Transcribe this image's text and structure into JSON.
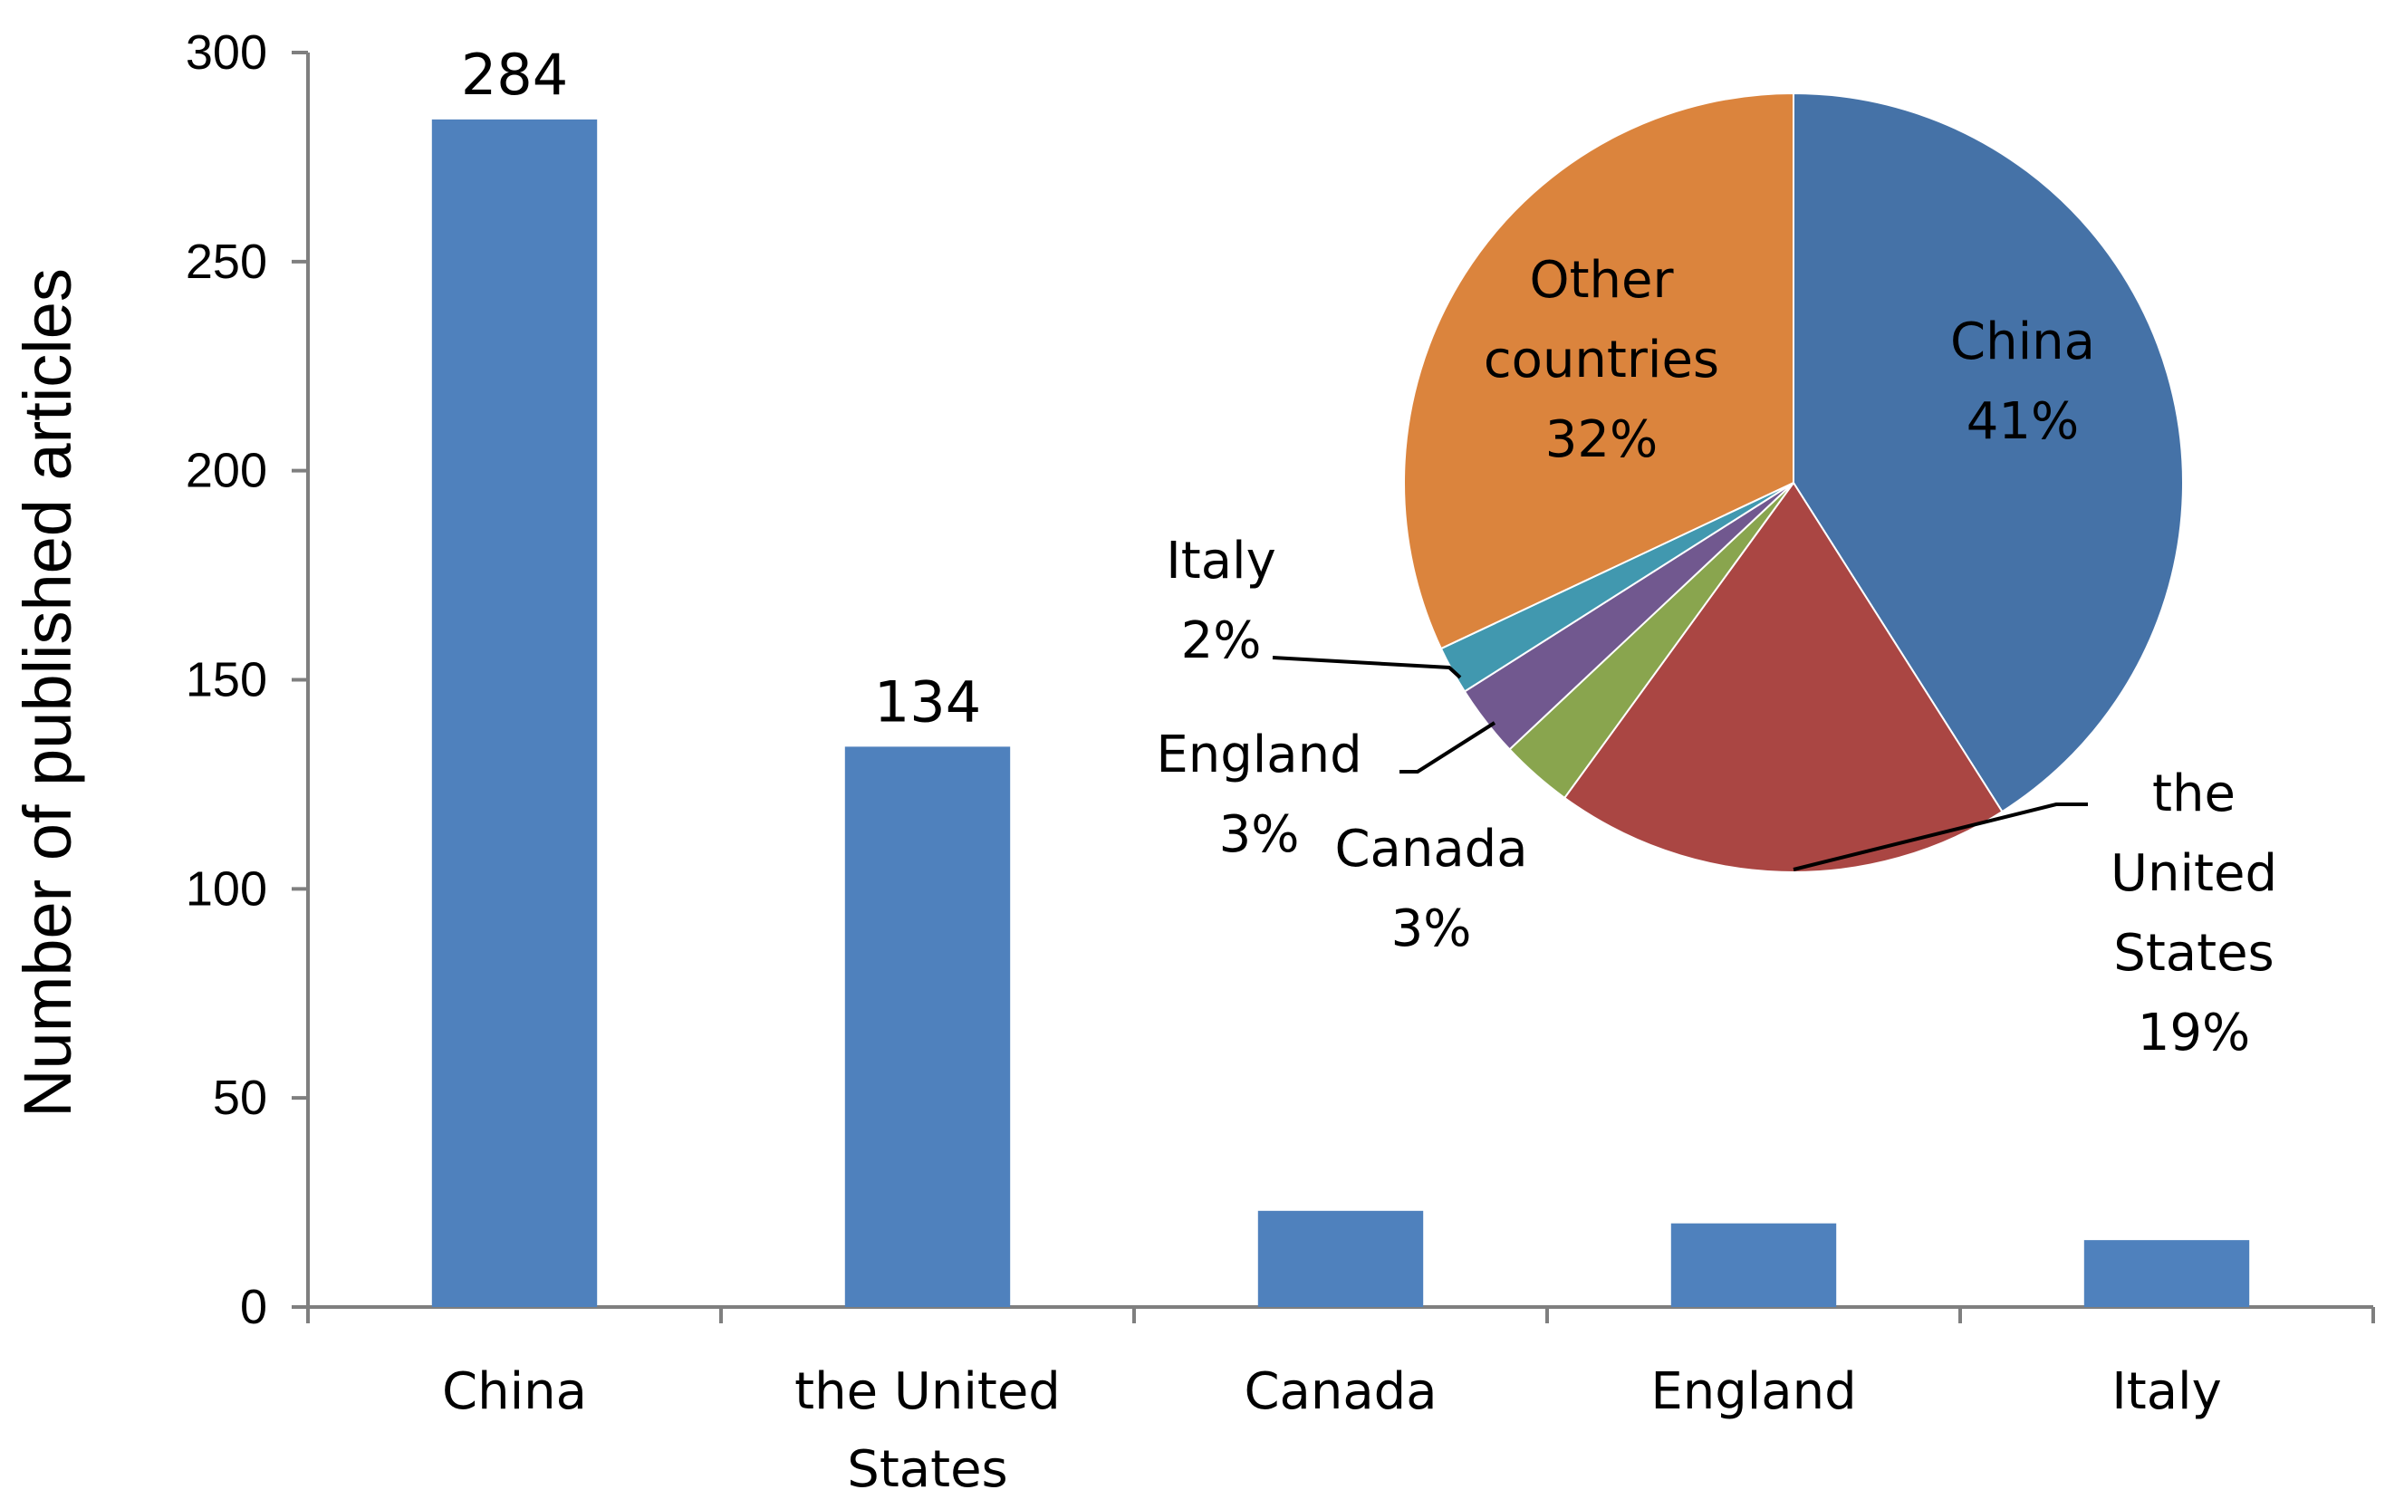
{
  "chart_data": [
    {
      "type": "bar",
      "categories": [
        [
          "China"
        ],
        [
          "the United",
          "States"
        ],
        [
          "Canada"
        ],
        [
          "England"
        ],
        [
          "Italy"
        ]
      ],
      "values": [
        284,
        134,
        23,
        20,
        16
      ],
      "data_labels": [
        "284",
        "134",
        null,
        null,
        null
      ],
      "ylabel": "Number of published articles",
      "xlabel": "",
      "ylim": [
        0,
        300
      ],
      "yticks": [
        0,
        50,
        100,
        150,
        200,
        250,
        300
      ],
      "bar_color": "#4f81bd",
      "grid": false
    },
    {
      "type": "pie",
      "slices": [
        {
          "name": "China",
          "value": 41,
          "label_lines": [
            "China",
            "41%"
          ],
          "color": "#4572a7"
        },
        {
          "name": "the United States",
          "value": 19,
          "label_lines": [
            "the",
            "United",
            "States",
            "19%"
          ],
          "color": "#aa4643"
        },
        {
          "name": "Canada",
          "value": 3,
          "label_lines": [
            "Canada",
            "3%"
          ],
          "color": "#89a54e"
        },
        {
          "name": "England",
          "value": 3,
          "label_lines": [
            "England",
            "3%"
          ],
          "color": "#71588f"
        },
        {
          "name": "Italy",
          "value": 2,
          "label_lines": [
            "Italy",
            "2%"
          ],
          "color": "#4198af"
        },
        {
          "name": "Other countries",
          "value": 32,
          "label_lines": [
            "Other",
            "countries",
            "32%"
          ],
          "color": "#db843d"
        }
      ]
    }
  ]
}
